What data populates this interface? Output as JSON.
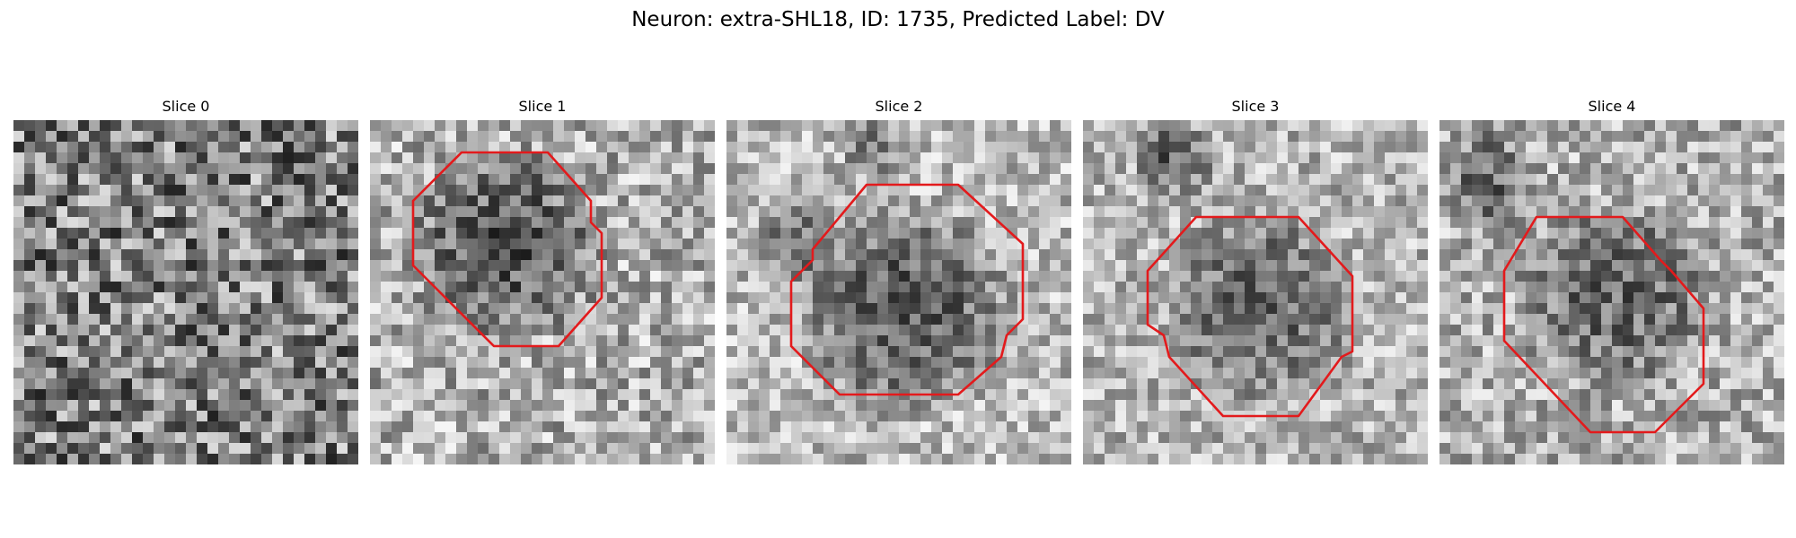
{
  "figure": {
    "title": "Neuron: extra-SHL18, ID: 1735, Predicted Label: DV"
  },
  "slices": [
    {
      "title": "Slice 0",
      "has_contour": false
    },
    {
      "title": "Slice 1",
      "has_contour": true
    },
    {
      "title": "Slice 2",
      "has_contour": true
    },
    {
      "title": "Slice 3",
      "has_contour": true
    },
    {
      "title": "Slice 4",
      "has_contour": true
    }
  ],
  "colors": {
    "contour": "#e31a1c",
    "background": "#ffffff"
  }
}
